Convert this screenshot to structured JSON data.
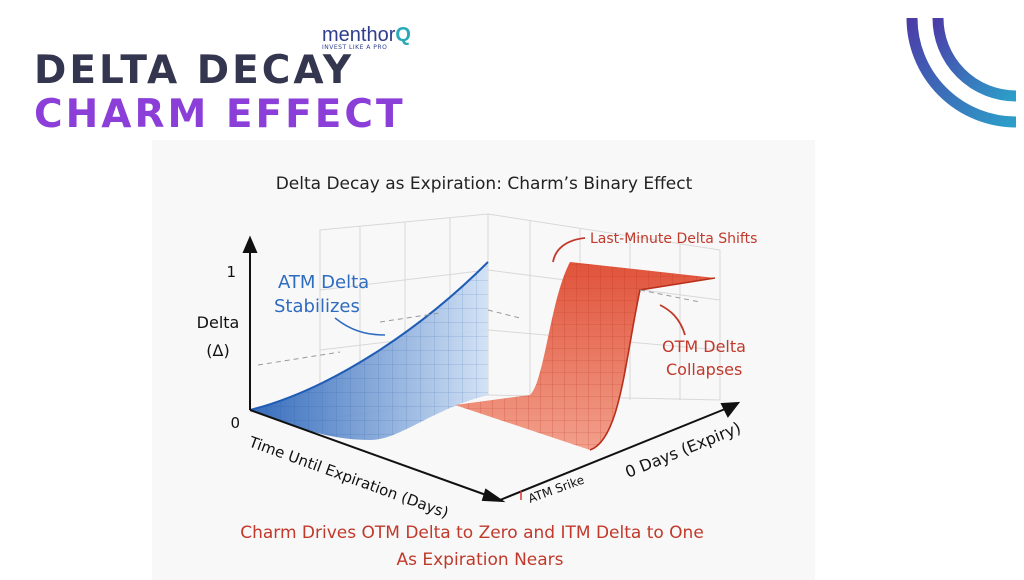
{
  "slide": {
    "title_line1": "DELTA DECAY",
    "title_line2": "CHARM EFFECT",
    "logo": {
      "name": "menthor",
      "letter": "Q",
      "tagline": "INVEST LIKE A PRO"
    },
    "colors": {
      "navy": "#34354f",
      "purple": "#8b3fd8",
      "blue_surface": "#2f6cc0",
      "red_surface": "#d9472f"
    }
  },
  "figure": {
    "title": "Delta Decay as Expiration: Charm’s Binary Effect",
    "y_axis_label_line1": "Delta",
    "y_axis_label_line2": "(Δ)",
    "y_tick_top": "1",
    "y_tick_bottom": "0",
    "x_axis_label": "Time Until Expiration (Days)",
    "depth_axis_label": "0 Days (Expiry)",
    "strike_label": "ATM Srike",
    "annotations": {
      "atm_line1": "ATM Delta",
      "atm_line2": "Stabilizes",
      "last_minute": "Last-Minute Delta Shifts",
      "otm_line1": "OTM Delta",
      "otm_line2": "Collapses"
    },
    "caption_line1": "Charm Drives OTM Delta to Zero and ITM Delta to One",
    "caption_line2": "As Expiration Nears"
  }
}
